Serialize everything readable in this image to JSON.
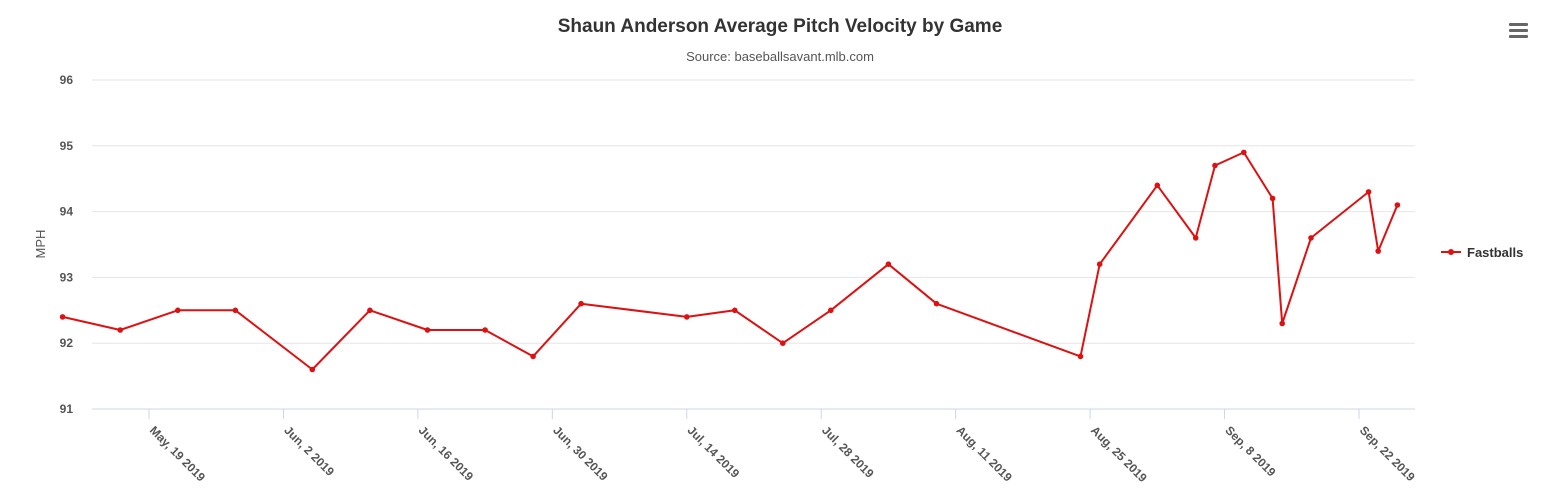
{
  "chart_data": {
    "type": "line",
    "title": "Shaun Anderson Average Pitch Velocity by Game",
    "subtitle": "Source: baseballsavant.mlb.com",
    "ylabel": "MPH",
    "xlabel": "",
    "ylim": [
      91,
      96
    ],
    "yticks": [
      "91",
      "92",
      "93",
      "94",
      "95",
      "96"
    ],
    "xlim": [
      "2019-05-10",
      "2019-09-26"
    ],
    "xticks": [
      {
        "date": "2019-05-19",
        "label": "May, 19 2019"
      },
      {
        "date": "2019-06-02",
        "label": "Jun, 2 2019"
      },
      {
        "date": "2019-06-16",
        "label": "Jun, 16 2019"
      },
      {
        "date": "2019-06-30",
        "label": "Jun, 30 2019"
      },
      {
        "date": "2019-07-14",
        "label": "Jul, 14 2019"
      },
      {
        "date": "2019-07-28",
        "label": "Jul, 28 2019"
      },
      {
        "date": "2019-08-11",
        "label": "Aug, 11 2019"
      },
      {
        "date": "2019-08-25",
        "label": "Aug, 25 2019"
      },
      {
        "date": "2019-09-08",
        "label": "Sep, 8 2019"
      },
      {
        "date": "2019-09-22",
        "label": "Sep, 22 2019"
      }
    ],
    "grid": true,
    "legend": "right",
    "series": [
      {
        "name": "Fastballs",
        "color": "#dd1111",
        "points": [
          {
            "x": "2019-05-10",
            "y": 92.4
          },
          {
            "x": "2019-05-16",
            "y": 92.2
          },
          {
            "x": "2019-05-22",
            "y": 92.5
          },
          {
            "x": "2019-05-28",
            "y": 92.5
          },
          {
            "x": "2019-06-05",
            "y": 91.6
          },
          {
            "x": "2019-06-11",
            "y": 92.5
          },
          {
            "x": "2019-06-17",
            "y": 92.2
          },
          {
            "x": "2019-06-23",
            "y": 92.2
          },
          {
            "x": "2019-06-28",
            "y": 91.8
          },
          {
            "x": "2019-07-03",
            "y": 92.6
          },
          {
            "x": "2019-07-14",
            "y": 92.4
          },
          {
            "x": "2019-07-19",
            "y": 92.5
          },
          {
            "x": "2019-07-24",
            "y": 92.0
          },
          {
            "x": "2019-07-29",
            "y": 92.5
          },
          {
            "x": "2019-08-04",
            "y": 93.2
          },
          {
            "x": "2019-08-09",
            "y": 92.6
          },
          {
            "x": "2019-08-24",
            "y": 91.8
          },
          {
            "x": "2019-08-26",
            "y": 93.2
          },
          {
            "x": "2019-09-01",
            "y": 94.4
          },
          {
            "x": "2019-09-05",
            "y": 93.6
          },
          {
            "x": "2019-09-07",
            "y": 94.7
          },
          {
            "x": "2019-09-10",
            "y": 94.9
          },
          {
            "x": "2019-09-13",
            "y": 94.2
          },
          {
            "x": "2019-09-14",
            "y": 92.3
          },
          {
            "x": "2019-09-17",
            "y": 93.6
          },
          {
            "x": "2019-09-23",
            "y": 94.3
          },
          {
            "x": "2019-09-24",
            "y": 93.4
          },
          {
            "x": "2019-09-26",
            "y": 94.1
          }
        ]
      }
    ]
  },
  "menu": {
    "icon": "hamburger-menu-icon"
  }
}
